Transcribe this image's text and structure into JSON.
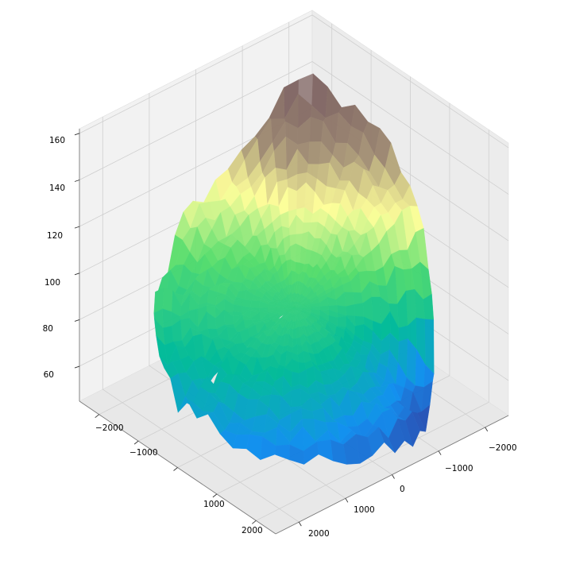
{
  "chart_data": {
    "type": "surface3d",
    "title": "",
    "xlabel": "",
    "ylabel": "",
    "zlabel": "",
    "colormap": "terrain",
    "colormap_stops": [
      "#333399",
      "#0f8ff1",
      "#00bb99",
      "#55dd6c",
      "#ffff99",
      "#a08c74",
      "#806563",
      "#ffffff"
    ],
    "pane_color": "#f0f0f0",
    "grid": true,
    "xlim": [
      -2500,
      2500
    ],
    "ylim": [
      -2500,
      2500
    ],
    "zlim": [
      45,
      162
    ],
    "x_ticks": [
      -2000,
      -1000,
      0,
      1000,
      2000
    ],
    "y_ticks": [
      -2000,
      -1000,
      1000,
      2000
    ],
    "z_ticks": [
      60,
      80,
      100,
      120,
      140,
      160
    ],
    "x_tick_labels": [
      "−2000",
      "−1000",
      "0",
      "1000",
      "2000"
    ],
    "y_tick_labels": [
      "−2000",
      "−1000",
      "1000",
      "2000"
    ],
    "z_tick_labels": [
      "60",
      "80",
      "100",
      "120",
      "140",
      "160"
    ],
    "radius": 2300,
    "center_height": 88,
    "surface_regions": [
      {
        "angle_deg": 225,
        "height": 150
      },
      {
        "angle_deg": 200,
        "height": 140
      },
      {
        "angle_deg": 180,
        "height": 125
      },
      {
        "angle_deg": 270,
        "height": 110
      },
      {
        "angle_deg": 300,
        "height": 92
      },
      {
        "angle_deg": 0,
        "height": 68
      },
      {
        "angle_deg": 45,
        "height": 58
      },
      {
        "angle_deg": 90,
        "height": 54
      },
      {
        "angle_deg": 120,
        "height": 48
      }
    ]
  }
}
